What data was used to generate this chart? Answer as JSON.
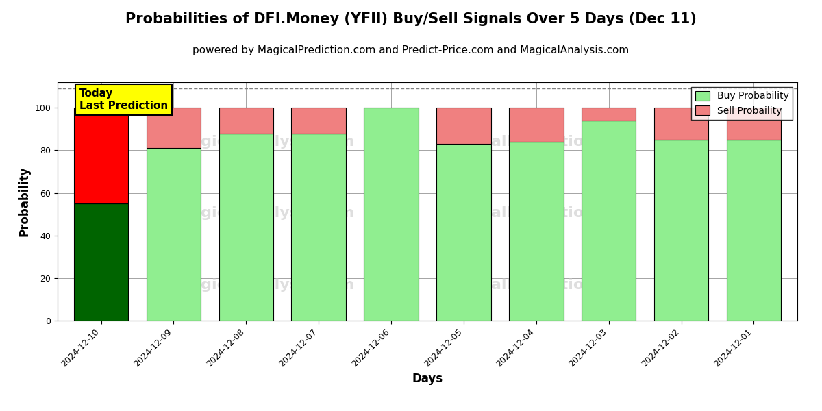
{
  "title": "Probabilities of DFI.Money (YFII) Buy/Sell Signals Over 5 Days (Dec 11)",
  "subtitle": "powered by MagicalPrediction.com and Predict-Price.com and MagicalAnalysis.com",
  "xlabel": "Days",
  "ylabel": "Probability",
  "dates": [
    "2024-12-10",
    "2024-12-09",
    "2024-12-08",
    "2024-12-07",
    "2024-12-06",
    "2024-12-05",
    "2024-12-04",
    "2024-12-03",
    "2024-12-02",
    "2024-12-01"
  ],
  "buy_values": [
    55,
    81,
    88,
    88,
    100,
    83,
    84,
    94,
    85,
    85
  ],
  "sell_values": [
    45,
    19,
    12,
    12,
    0,
    17,
    16,
    6,
    15,
    15
  ],
  "today_buy_color": "#006400",
  "today_sell_color": "#FF0000",
  "other_buy_color": "#90EE90",
  "other_sell_color": "#F08080",
  "ylim": [
    0,
    112
  ],
  "dashed_line_y": 109,
  "legend_buy_label": "Buy Probability",
  "legend_sell_label": "Sell Probaility",
  "today_label_line1": "Today",
  "today_label_line2": "Last Prediction",
  "title_fontsize": 15,
  "subtitle_fontsize": 11,
  "axis_label_fontsize": 12,
  "tick_fontsize": 9,
  "bar_width": 0.75
}
